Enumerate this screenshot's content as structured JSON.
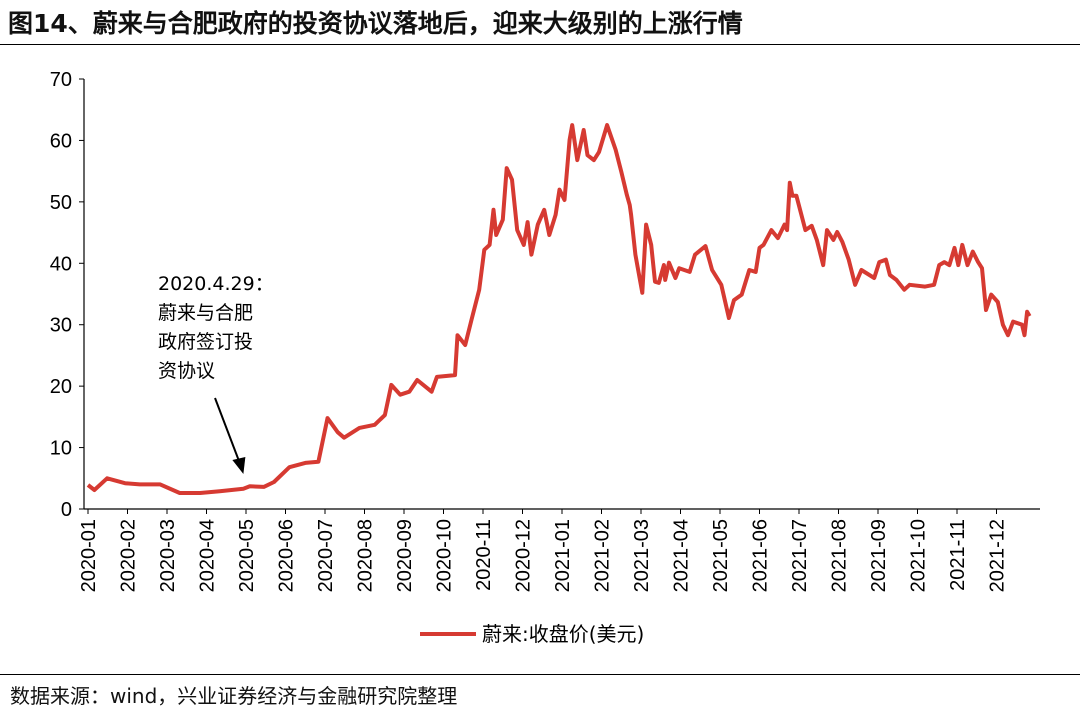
{
  "title": "图14、蔚来与合肥政府的投资协议落地后，迎来大级别的上涨行情",
  "source": "数据来源：wind，兴业证券经济与金融研究院整理",
  "chart_data": {
    "type": "line",
    "xlabel": "",
    "ylabel": "",
    "ylim": [
      0,
      70
    ],
    "yticks": [
      "0",
      "10",
      "20",
      "30",
      "40",
      "50",
      "60",
      "70"
    ],
    "xticks": [
      "2020-01",
      "2020-02",
      "2020-03",
      "2020-04",
      "2020-05",
      "2020-06",
      "2020-07",
      "2020-08",
      "2020-09",
      "2020-10",
      "2020-11",
      "2020-12",
      "2021-01",
      "2021-02",
      "2021-03",
      "2021-04",
      "2021-05",
      "2021-06",
      "2021-07",
      "2021-08",
      "2021-09",
      "2021-10",
      "2021-11",
      "2021-12"
    ],
    "grid": false,
    "legend_position": "bottom",
    "color": "#d63a32",
    "annotation": {
      "date": "2020-04-29",
      "lines": [
        "2020.4.29：",
        "蔚来与合肥",
        "政府签订投",
        "资协议"
      ]
    },
    "series": [
      {
        "name": "蔚来:收盘价(美元)",
        "points": [
          [
            "2020-01-01",
            3.9
          ],
          [
            "2020-01-06",
            3.1
          ],
          [
            "2020-01-16",
            5.0
          ],
          [
            "2020-01-30",
            4.2
          ],
          [
            "2020-02-10",
            4.0
          ],
          [
            "2020-02-25",
            4.0
          ],
          [
            "2020-03-11",
            2.6
          ],
          [
            "2020-03-27",
            2.6
          ],
          [
            "2020-04-11",
            2.9
          ],
          [
            "2020-04-29",
            3.3
          ],
          [
            "2020-05-04",
            3.7
          ],
          [
            "2020-05-15",
            3.6
          ],
          [
            "2020-05-23",
            4.4
          ],
          [
            "2020-06-04",
            6.8
          ],
          [
            "2020-06-16",
            7.5
          ],
          [
            "2020-06-26",
            7.7
          ],
          [
            "2020-07-03",
            14.8
          ],
          [
            "2020-07-11",
            12.5
          ],
          [
            "2020-07-16",
            11.6
          ],
          [
            "2020-07-28",
            13.2
          ],
          [
            "2020-08-09",
            13.7
          ],
          [
            "2020-08-17",
            15.3
          ],
          [
            "2020-08-22",
            20.2
          ],
          [
            "2020-08-29",
            18.6
          ],
          [
            "2020-09-05",
            19.1
          ],
          [
            "2020-09-11",
            21.0
          ],
          [
            "2020-09-22",
            19.1
          ],
          [
            "2020-09-26",
            21.5
          ],
          [
            "2020-10-10",
            21.8
          ],
          [
            "2020-10-12",
            28.3
          ],
          [
            "2020-10-18",
            26.7
          ],
          [
            "2020-10-23",
            30.8
          ],
          [
            "2020-10-29",
            35.7
          ],
          [
            "2020-11-02",
            42.2
          ],
          [
            "2020-11-06",
            43.0
          ],
          [
            "2020-11-09",
            48.7
          ],
          [
            "2020-11-11",
            44.6
          ],
          [
            "2020-11-16",
            47.1
          ],
          [
            "2020-11-19",
            55.5
          ],
          [
            "2020-11-23",
            53.6
          ],
          [
            "2020-11-27",
            45.4
          ],
          [
            "2020-12-02",
            43.0
          ],
          [
            "2020-12-05",
            46.7
          ],
          [
            "2020-12-08",
            41.4
          ],
          [
            "2020-12-13",
            46.3
          ],
          [
            "2020-12-18",
            48.7
          ],
          [
            "2020-12-22",
            44.6
          ],
          [
            "2020-12-27",
            47.9
          ],
          [
            "2020-12-30",
            52.0
          ],
          [
            "2021-01-03",
            50.3
          ],
          [
            "2021-01-07",
            60.1
          ],
          [
            "2021-01-09",
            62.5
          ],
          [
            "2021-01-13",
            56.8
          ],
          [
            "2021-01-18",
            61.7
          ],
          [
            "2021-01-21",
            57.6
          ],
          [
            "2021-01-26",
            56.8
          ],
          [
            "2021-01-30",
            58.1
          ],
          [
            "2021-02-05",
            62.5
          ],
          [
            "2021-02-11",
            58.5
          ],
          [
            "2021-02-15",
            54.9
          ],
          [
            "2021-02-19",
            51.1
          ],
          [
            "2021-02-21",
            49.5
          ],
          [
            "2021-02-22",
            47.9
          ],
          [
            "2021-02-25",
            41.4
          ],
          [
            "2021-03-02",
            35.2
          ],
          [
            "2021-03-05",
            46.3
          ],
          [
            "2021-03-09",
            43.0
          ],
          [
            "2021-03-12",
            37.0
          ],
          [
            "2021-03-15",
            36.8
          ],
          [
            "2021-03-19",
            39.7
          ],
          [
            "2021-03-20",
            37.3
          ],
          [
            "2021-03-23",
            40.1
          ],
          [
            "2021-03-28",
            37.6
          ],
          [
            "2021-03-31",
            39.2
          ],
          [
            "2021-04-08",
            38.6
          ],
          [
            "2021-04-12",
            41.4
          ],
          [
            "2021-04-20",
            42.8
          ],
          [
            "2021-04-25",
            38.9
          ],
          [
            "2021-05-02",
            36.5
          ],
          [
            "2021-05-08",
            31.1
          ],
          [
            "2021-05-12",
            34.0
          ],
          [
            "2021-05-18",
            34.9
          ],
          [
            "2021-05-24",
            38.9
          ],
          [
            "2021-05-29",
            38.6
          ],
          [
            "2021-06-01",
            42.5
          ],
          [
            "2021-06-04",
            43.0
          ],
          [
            "2021-06-10",
            45.4
          ],
          [
            "2021-06-15",
            44.1
          ],
          [
            "2021-06-20",
            46.3
          ],
          [
            "2021-06-22",
            45.4
          ],
          [
            "2021-06-24",
            53.1
          ],
          [
            "2021-06-26",
            51.0
          ],
          [
            "2021-06-29",
            51.0
          ],
          [
            "2021-07-06",
            45.4
          ],
          [
            "2021-07-11",
            46.1
          ],
          [
            "2021-07-15",
            43.8
          ],
          [
            "2021-07-20",
            39.7
          ],
          [
            "2021-07-23",
            45.4
          ],
          [
            "2021-07-28",
            43.8
          ],
          [
            "2021-07-31",
            45.1
          ],
          [
            "2021-08-04",
            43.5
          ],
          [
            "2021-08-09",
            40.6
          ],
          [
            "2021-08-14",
            36.5
          ],
          [
            "2021-08-19",
            38.9
          ],
          [
            "2021-08-29",
            37.6
          ],
          [
            "2021-09-02",
            40.2
          ],
          [
            "2021-09-07",
            40.6
          ],
          [
            "2021-09-10",
            38.1
          ],
          [
            "2021-09-15",
            37.3
          ],
          [
            "2021-09-21",
            35.7
          ],
          [
            "2021-09-25",
            36.5
          ],
          [
            "2021-10-07",
            36.2
          ],
          [
            "2021-10-14",
            36.5
          ],
          [
            "2021-10-18",
            39.7
          ],
          [
            "2021-10-22",
            40.2
          ],
          [
            "2021-10-26",
            39.7
          ],
          [
            "2021-10-30",
            42.5
          ],
          [
            "2021-11-02",
            39.7
          ],
          [
            "2021-11-05",
            43.0
          ],
          [
            "2021-11-09",
            39.7
          ],
          [
            "2021-11-13",
            41.9
          ],
          [
            "2021-11-17",
            40.2
          ],
          [
            "2021-11-20",
            39.2
          ],
          [
            "2021-11-23",
            32.4
          ],
          [
            "2021-11-27",
            34.9
          ],
          [
            "2021-12-02",
            33.7
          ],
          [
            "2021-12-06",
            30.0
          ],
          [
            "2021-12-10",
            28.3
          ],
          [
            "2021-12-14",
            30.5
          ],
          [
            "2021-12-21",
            30.0
          ],
          [
            "2021-12-23",
            28.3
          ],
          [
            "2021-12-25",
            32.1
          ],
          [
            "2021-12-27",
            31.4
          ]
        ]
      }
    ]
  }
}
